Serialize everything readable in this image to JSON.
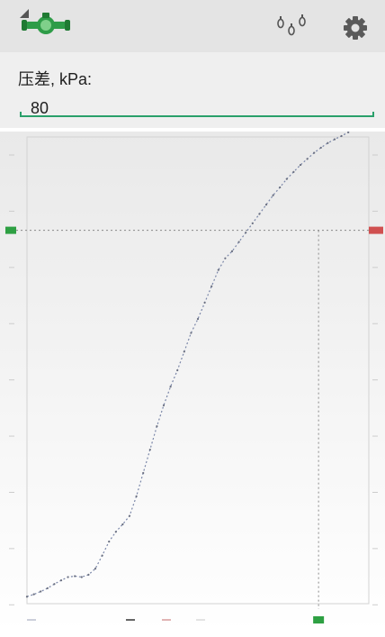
{
  "appbar": {
    "logo_icon": "pump-logo-icon",
    "dropdown_icon": "dropdown-triangle-icon",
    "valve_icon": "valves-icon",
    "settings_icon": "gear-icon",
    "accent": "#2e9c48"
  },
  "pressure_input": {
    "label": "压差, kPa:",
    "value": "80",
    "underline_color": "#2aa06a"
  },
  "chart_data": {
    "type": "line",
    "title": "",
    "xlabel": "",
    "ylabel": "",
    "xlim": [
      0,
      100
    ],
    "ylim": [
      0,
      100
    ],
    "grid": true,
    "legend_position": "bottom",
    "series": [
      {
        "color": "#7a86a8",
        "x": [
          0,
          2,
          4,
          6,
          8,
          10,
          12,
          14,
          16,
          18,
          20,
          22,
          24,
          26,
          28,
          30,
          32,
          34,
          36,
          38,
          40,
          42,
          44,
          46,
          48,
          50,
          52,
          54,
          56,
          58,
          60,
          62,
          64,
          66,
          68,
          70,
          72,
          74,
          76,
          78,
          80,
          82,
          84,
          86,
          88,
          90,
          92,
          94,
          96,
          98,
          100
        ],
        "y": [
          1.5,
          2,
          2.6,
          3.3,
          4.2,
          5,
          5.7,
          5.9,
          5.7,
          6.2,
          7.5,
          10.3,
          13.3,
          15.4,
          17,
          18.8,
          23,
          28,
          33,
          38,
          42.5,
          46.5,
          50,
          54,
          58,
          61,
          64.5,
          68,
          71.5,
          74,
          75.5,
          77.5,
          79.5,
          81.5,
          83.5,
          85.5,
          87.5,
          89.2,
          91,
          92.5,
          94,
          95.3,
          96.6,
          97.7,
          98.7,
          99.5,
          100.2,
          101,
          101.7,
          102.3,
          103
        ]
      }
    ],
    "crosshair": {
      "x": 85.3,
      "y": 80
    },
    "crosshair_color": "#8a8a8a",
    "marker_colors": {
      "left": "#2ea043",
      "right": "#d05050",
      "bottom": "#2ea043"
    }
  }
}
